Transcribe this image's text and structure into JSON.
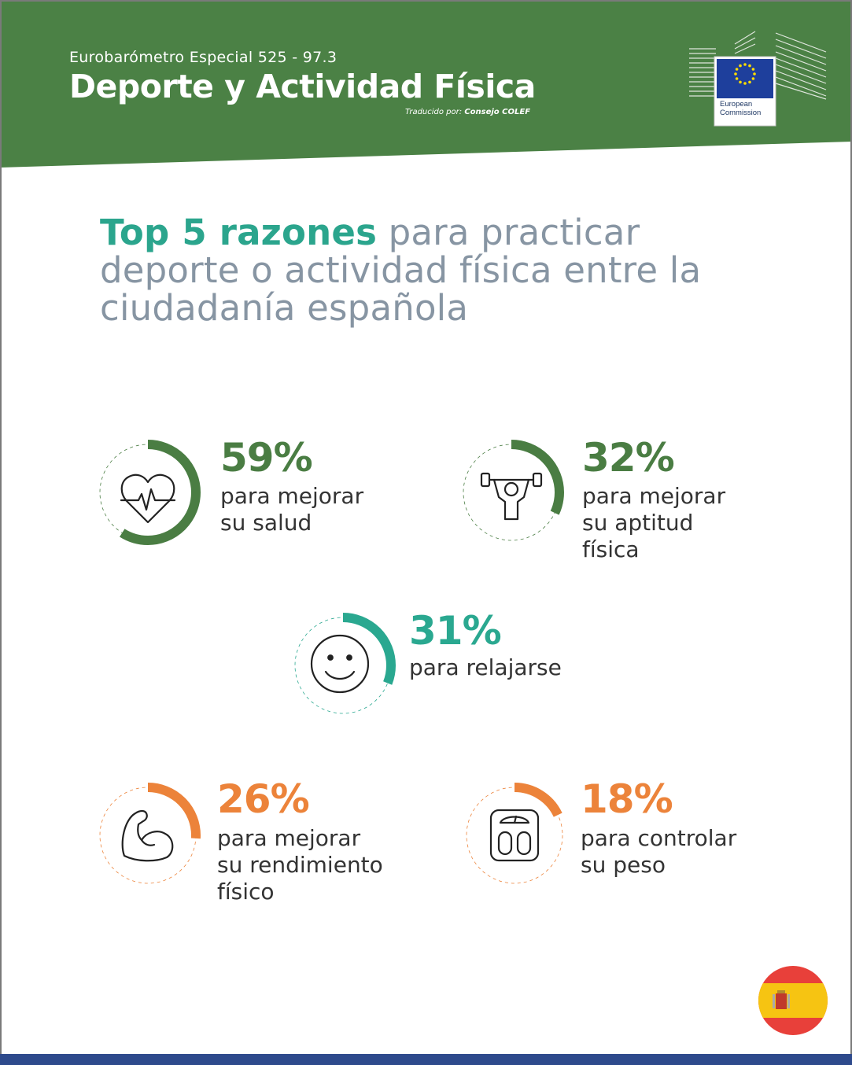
{
  "header": {
    "subtitle": "Eurobarómetro Especial 525 - 97.3",
    "title": "Deporte y Actividad Física",
    "credit_prefix": "Traducido por:",
    "credit_name": "Consejo COLEF",
    "logo_text_line1": "European",
    "logo_text_line2": "Commission",
    "bg_color": "#4b8145"
  },
  "headline": {
    "strong": "Top 5 razones",
    "rest": " para practicar deporte o actividad física entre la ciudadanía española"
  },
  "stats": [
    {
      "pct": "59%",
      "value": 59,
      "label_lines": [
        "para mejorar",
        "su salud"
      ],
      "icon": "heart-pulse-icon",
      "color": "#4a7d43"
    },
    {
      "pct": "32%",
      "value": 32,
      "label_lines": [
        "para mejorar",
        "su aptitud",
        "física"
      ],
      "icon": "weightlifter-icon",
      "color": "#4a7d43"
    },
    {
      "pct": "31%",
      "value": 31,
      "label_lines": [
        "para relajarse"
      ],
      "icon": "smiley-face-icon",
      "color": "#2aa890"
    },
    {
      "pct": "26%",
      "value": 26,
      "label_lines": [
        "para mejorar",
        "su rendimiento",
        "físico"
      ],
      "icon": "flexed-bicep-icon",
      "color": "#ec833a"
    },
    {
      "pct": "18%",
      "value": 18,
      "label_lines": [
        "para controlar",
        "su peso"
      ],
      "icon": "weighing-scale-icon",
      "color": "#ec833a"
    }
  ],
  "footer": {
    "flag_icon": "spain-flag-icon",
    "bar_color": "#2e4a8c"
  }
}
